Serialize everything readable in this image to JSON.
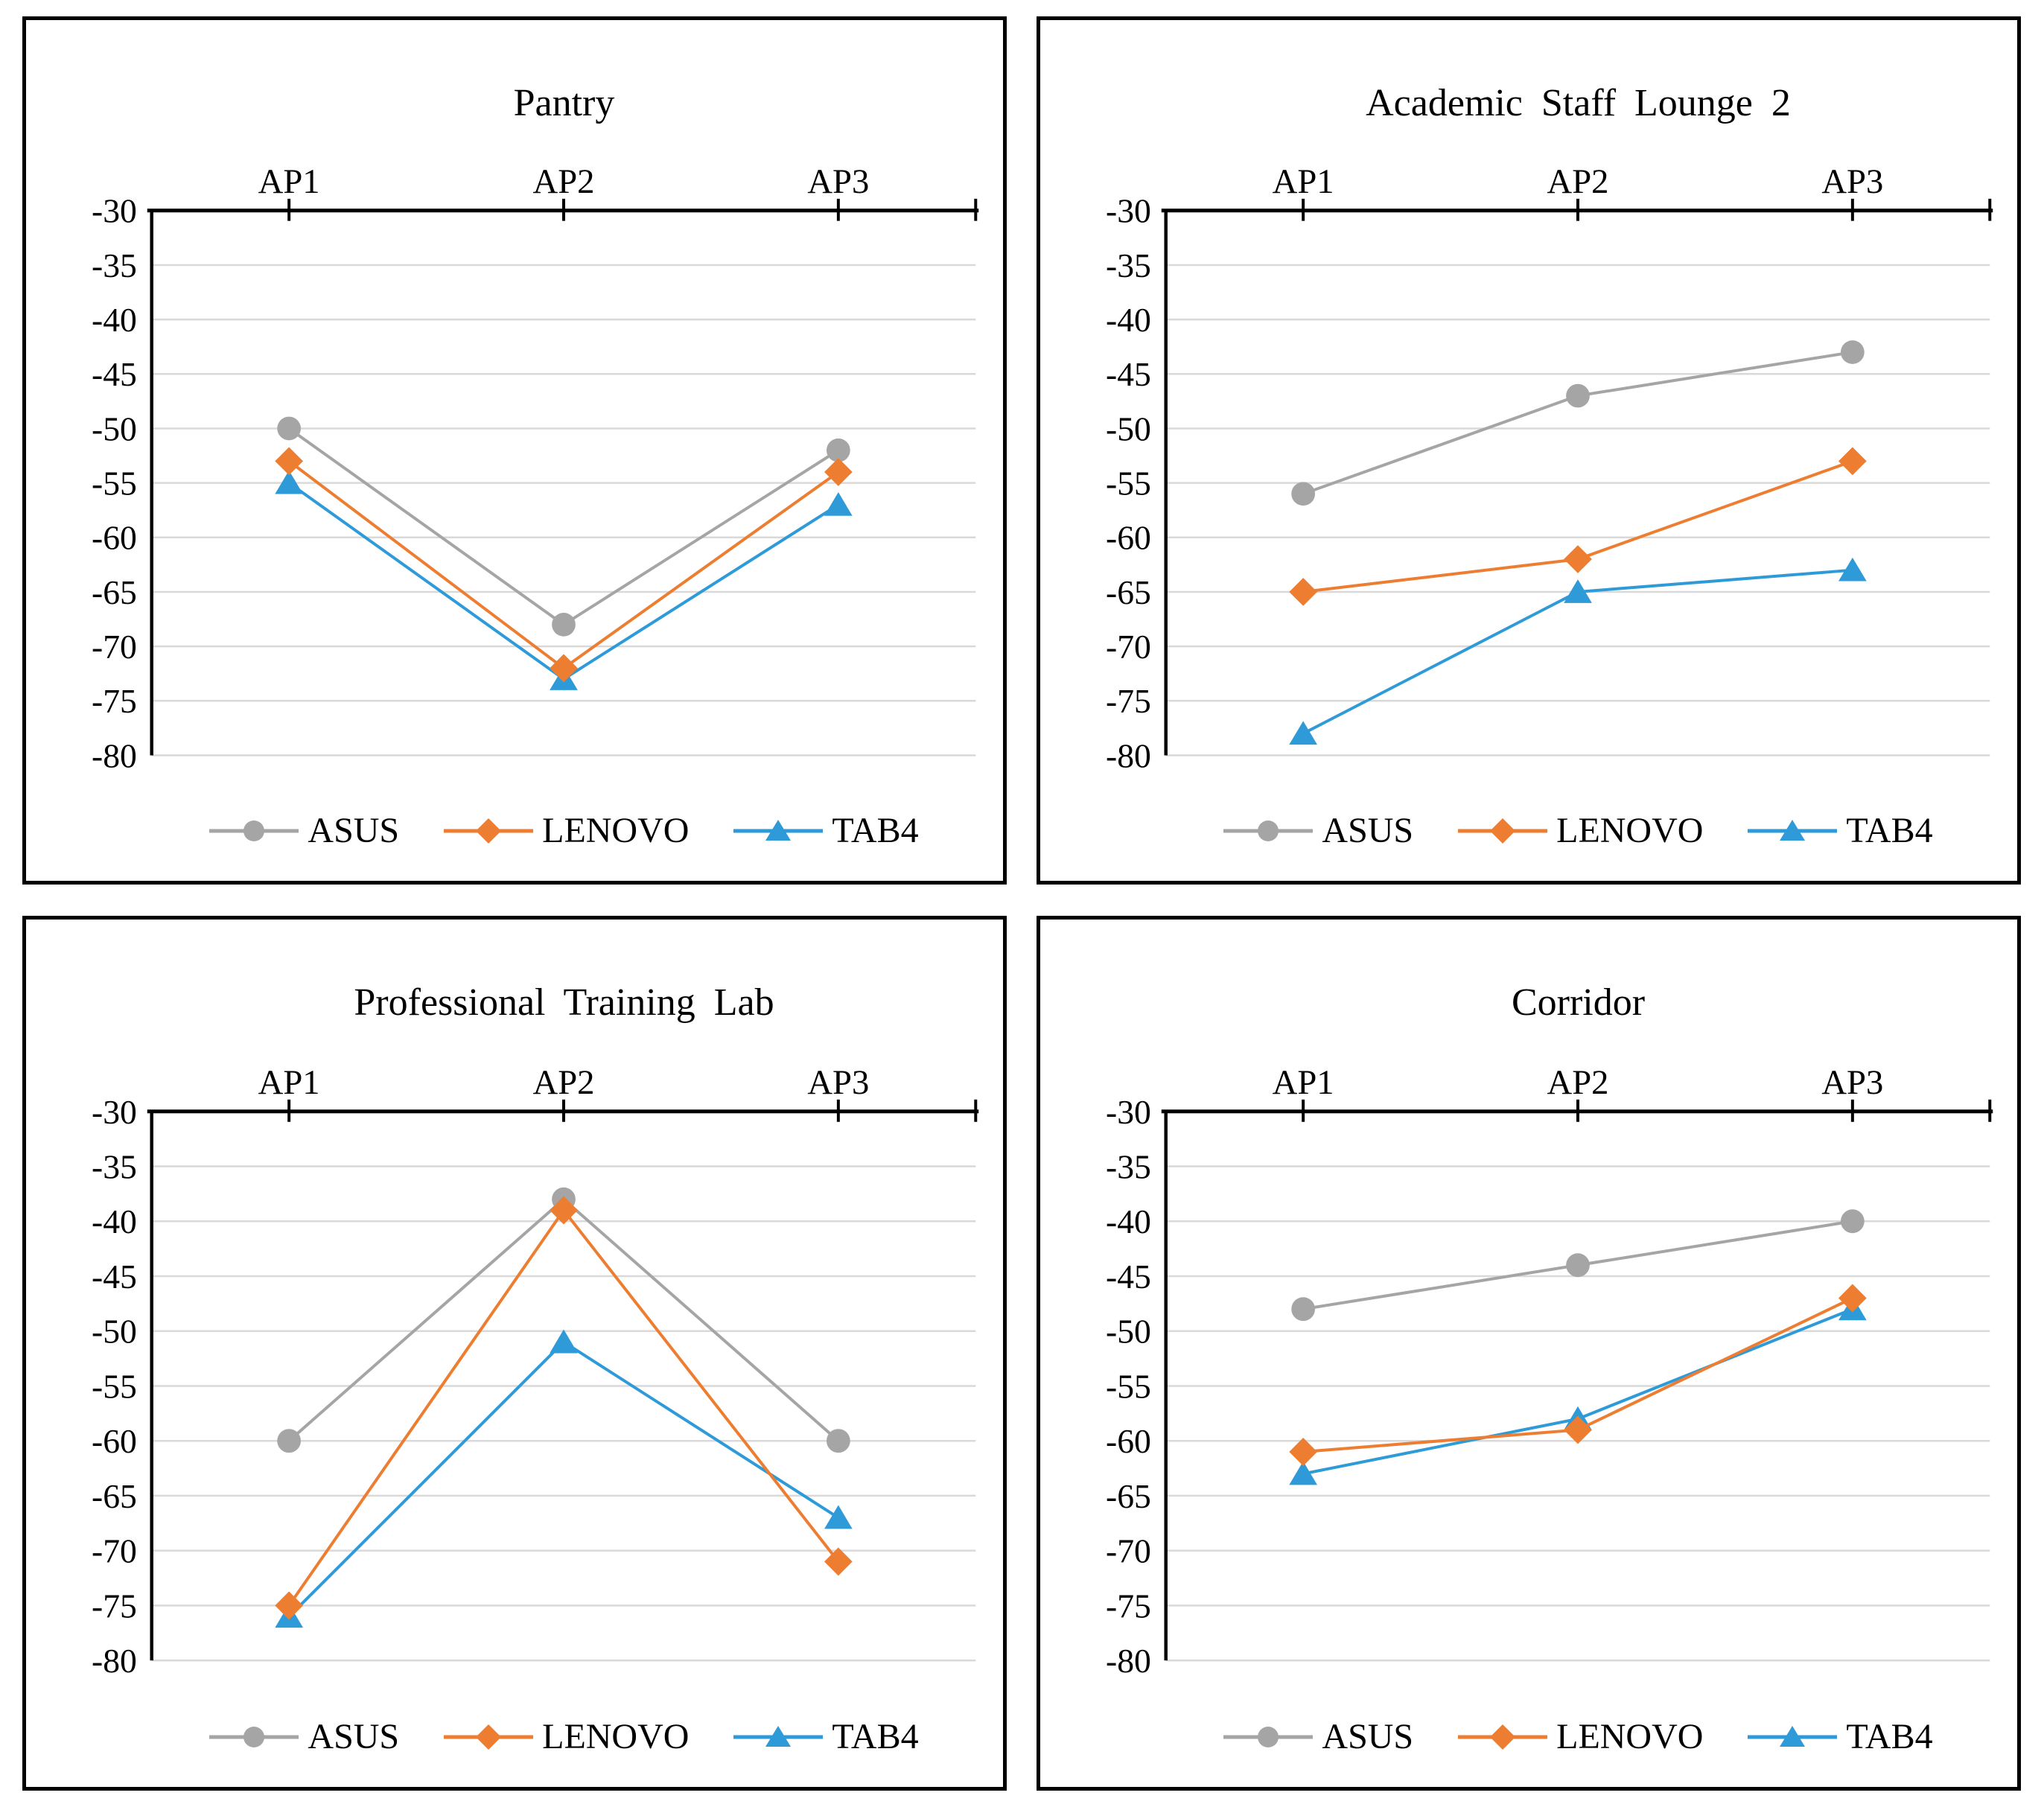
{
  "chart_data": [
    {
      "type": "line",
      "title": "Pantry",
      "categories": [
        "AP1",
        "AP2",
        "AP3"
      ],
      "yticks": [
        -30,
        -35,
        -40,
        -45,
        -50,
        -55,
        -60,
        -65,
        -70,
        -75,
        -80
      ],
      "ylim": [
        -80,
        -30
      ],
      "xlabel": "",
      "ylabel": "",
      "grid": true,
      "x_axis_position": "top",
      "legend_position": "bottom",
      "series": [
        {
          "name": "ASUS",
          "marker": "circle",
          "color": "#A5A5A5",
          "values": [
            -50,
            -68,
            -52
          ]
        },
        {
          "name": "LENOVO",
          "marker": "diamond",
          "color": "#ED7D31",
          "values": [
            -53,
            -72,
            -54
          ]
        },
        {
          "name": "TAB4",
          "marker": "triangle",
          "color": "#2E9BD8",
          "values": [
            -55,
            -73,
            -57
          ]
        }
      ]
    },
    {
      "type": "line",
      "title": "Academic Staff Lounge 2",
      "categories": [
        "AP1",
        "AP2",
        "AP3"
      ],
      "yticks": [
        -30,
        -35,
        -40,
        -45,
        -50,
        -55,
        -60,
        -65,
        -70,
        -75,
        -80
      ],
      "ylim": [
        -80,
        -30
      ],
      "xlabel": "",
      "ylabel": "",
      "grid": true,
      "x_axis_position": "top",
      "legend_position": "bottom",
      "series": [
        {
          "name": "ASUS",
          "marker": "circle",
          "color": "#A5A5A5",
          "values": [
            -56,
            -47,
            -43
          ]
        },
        {
          "name": "LENOVO",
          "marker": "diamond",
          "color": "#ED7D31",
          "values": [
            -65,
            -62,
            -53
          ]
        },
        {
          "name": "TAB4",
          "marker": "triangle",
          "color": "#2E9BD8",
          "values": [
            -78,
            -65,
            -63
          ]
        }
      ]
    },
    {
      "type": "line",
      "title": "Professional Training Lab",
      "categories": [
        "AP1",
        "AP2",
        "AP3"
      ],
      "yticks": [
        -30,
        -35,
        -40,
        -45,
        -50,
        -55,
        -60,
        -65,
        -70,
        -75,
        -80
      ],
      "ylim": [
        -80,
        -30
      ],
      "xlabel": "",
      "ylabel": "",
      "grid": true,
      "x_axis_position": "top",
      "legend_position": "bottom",
      "series": [
        {
          "name": "ASUS",
          "marker": "circle",
          "color": "#A5A5A5",
          "values": [
            -60,
            -38,
            -60
          ]
        },
        {
          "name": "LENOVO",
          "marker": "diamond",
          "color": "#ED7D31",
          "values": [
            -75,
            -39,
            -71
          ]
        },
        {
          "name": "TAB4",
          "marker": "triangle",
          "color": "#2E9BD8",
          "values": [
            -76,
            -51,
            -67
          ]
        }
      ]
    },
    {
      "type": "line",
      "title": "Corridor",
      "categories": [
        "AP1",
        "AP2",
        "AP3"
      ],
      "yticks": [
        -30,
        -35,
        -40,
        -45,
        -50,
        -55,
        -60,
        -65,
        -70,
        -75,
        -80
      ],
      "ylim": [
        -80,
        -30
      ],
      "xlabel": "",
      "ylabel": "",
      "grid": true,
      "x_axis_position": "top",
      "legend_position": "bottom",
      "series": [
        {
          "name": "ASUS",
          "marker": "circle",
          "color": "#A5A5A5",
          "values": [
            -48,
            -44,
            -40
          ]
        },
        {
          "name": "LENOVO",
          "marker": "diamond",
          "color": "#ED7D31",
          "values": [
            -61,
            -59,
            -47
          ]
        },
        {
          "name": "TAB4",
          "marker": "triangle",
          "color": "#2E9BD8",
          "values": [
            -63,
            -58,
            -48
          ]
        }
      ]
    }
  ],
  "styles": {
    "axis_color": "#000000",
    "grid_color": "#D9D9D9",
    "text_color": "#000000",
    "background": "#FFFFFF"
  }
}
